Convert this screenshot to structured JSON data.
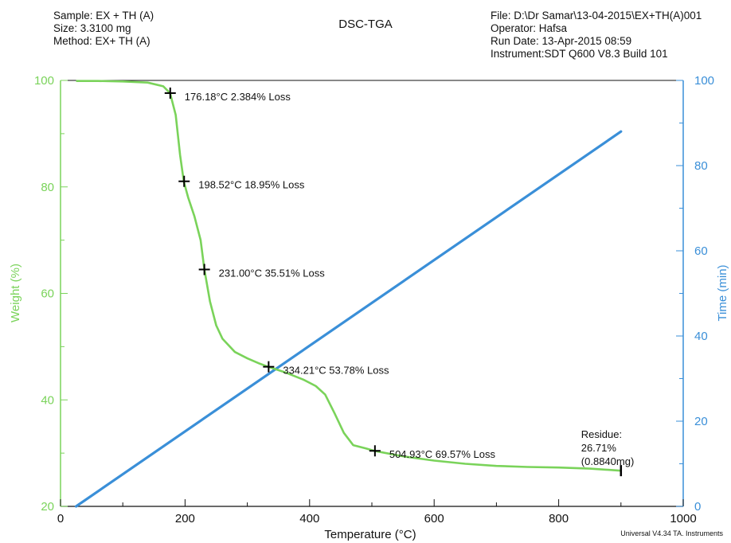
{
  "header": {
    "left": [
      "Sample: EX + TH (A)",
      "Size:  3.3100 mg",
      "Method: EX+ TH (A)"
    ],
    "right": [
      "File: D:\\Dr Samar\\13-04-2015\\EX+TH(A)001",
      "Operator: Hafsa",
      "Run Date: 13-Apr-2015 08:59",
      "Instrument:SDT Q600 V8.3 Build 101"
    ]
  },
  "footer": "Universal V4.34 TA. Instruments",
  "colors": {
    "weight": "#7ad35a",
    "time": "#3a8fd8",
    "axis": "#111111"
  },
  "chart_data": {
    "type": "line",
    "title": "DSC-TGA",
    "xlabel": "Temperature (°C)",
    "ylabel": "Weight (%)",
    "y2label": "Time (min)",
    "xlim": [
      0,
      1000
    ],
    "ylim": [
      20,
      100
    ],
    "y2lim": [
      0,
      100
    ],
    "xticks": [
      "0",
      "200",
      "400",
      "600",
      "800",
      "1000"
    ],
    "yticks": [
      "20",
      "40",
      "60",
      "80",
      "100"
    ],
    "y2ticks": [
      "0",
      "20",
      "40",
      "60",
      "80",
      "100"
    ],
    "grid": false,
    "series": [
      {
        "axis": "left",
        "x": [
          25,
          60,
          100,
          140,
          165,
          176,
          185,
          192,
          198,
          205,
          215,
          225,
          231,
          240,
          250,
          260,
          280,
          300,
          320,
          334,
          360,
          390,
          410,
          425,
          440,
          455,
          470,
          490,
          505,
          550,
          600,
          650,
          700,
          750,
          800,
          850,
          900
        ],
        "y": [
          99.9,
          99.9,
          99.8,
          99.6,
          98.9,
          97.6,
          93.5,
          86.0,
          81.0,
          78.0,
          74.5,
          70.0,
          64.5,
          58.5,
          54.0,
          51.5,
          49.0,
          47.8,
          46.8,
          46.2,
          45.2,
          43.8,
          42.6,
          41.0,
          37.5,
          33.8,
          31.5,
          30.9,
          30.4,
          29.4,
          28.6,
          28.0,
          27.6,
          27.4,
          27.3,
          27.1,
          26.7
        ]
      },
      {
        "axis": "right",
        "x": [
          25,
          900
        ],
        "y": [
          0,
          88
        ]
      }
    ],
    "markers": [
      {
        "x": 176.18,
        "y": 97.616,
        "label": "176.18°C  2.384% Loss"
      },
      {
        "x": 198.52,
        "y": 81.05,
        "label": "198.52°C  18.95% Loss"
      },
      {
        "x": 231.0,
        "y": 64.49,
        "label": "231.00°C  35.51% Loss"
      },
      {
        "x": 334.21,
        "y": 46.22,
        "label": "334.21°C  53.78% Loss"
      },
      {
        "x": 504.93,
        "y": 30.43,
        "label": "504.93°C  69.57% Loss"
      }
    ],
    "residue": {
      "x": 900,
      "y": 26.71,
      "lines": [
        "Residue:",
        "26.71%",
        "(0.8840mg)"
      ]
    }
  }
}
